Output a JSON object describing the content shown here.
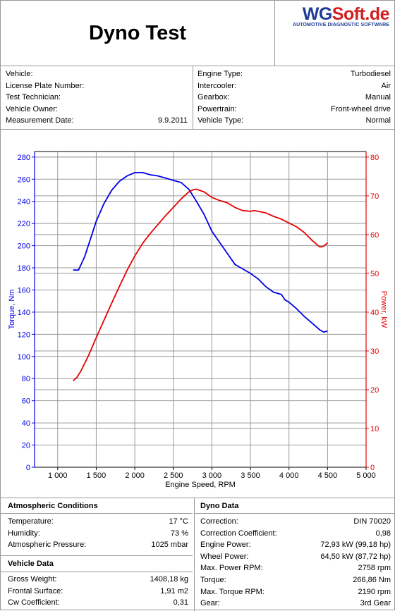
{
  "header": {
    "title": "Dyno Test",
    "logo_wg": "WG",
    "logo_soft": "Soft.de",
    "logo_sub": "AUTOMOTIVE DIAGNOSTIC SOFTWARE"
  },
  "vehicle_info_left": [
    {
      "label": "Vehicle:",
      "value": ""
    },
    {
      "label": "License Plate Number:",
      "value": ""
    },
    {
      "label": "Test Technician:",
      "value": ""
    },
    {
      "label": "Vehicle Owner:",
      "value": ""
    },
    {
      "label": "Measurement Date:",
      "value": "9.9.2011"
    }
  ],
  "vehicle_info_right": [
    {
      "label": "Engine Type:",
      "value": "Turbodiesel"
    },
    {
      "label": "Intercooler:",
      "value": "Air"
    },
    {
      "label": "Gearbox:",
      "value": "Manual"
    },
    {
      "label": "Powertrain:",
      "value": "Front-wheel drive"
    },
    {
      "label": "Vehicle Type:",
      "value": "Normal"
    }
  ],
  "chart_data": {
    "type": "line",
    "xlabel": "Engine Speed, RPM",
    "ylabel_left": "Torque, Nm",
    "ylabel_right": "Power, kW",
    "xlim": [
      700,
      5000
    ],
    "ylim_left": [
      0,
      285
    ],
    "ylim_right": [
      0,
      81.43
    ],
    "x_ticks": [
      1000,
      1500,
      2000,
      2500,
      3000,
      3500,
      4000,
      4500,
      5000
    ],
    "x_tick_labels": [
      "1 000",
      "1 500",
      "2 000",
      "2 500",
      "3 000",
      "3 500",
      "4 000",
      "4 500",
      "5 000"
    ],
    "y_left_ticks": [
      0,
      20,
      40,
      60,
      80,
      100,
      120,
      140,
      160,
      180,
      200,
      220,
      240,
      260,
      280
    ],
    "y_right_ticks": [
      0,
      10,
      20,
      30,
      40,
      50,
      60,
      70,
      80
    ],
    "grid": true,
    "colors": {
      "torque": "#0000e6",
      "power": "#e60000",
      "grid": "#9a9a9a"
    },
    "series": [
      {
        "name": "Torque, Nm",
        "axis": "left",
        "x": [
          1200,
          1270,
          1350,
          1420,
          1500,
          1600,
          1700,
          1800,
          1900,
          2000,
          2100,
          2200,
          2300,
          2400,
          2500,
          2600,
          2700,
          2800,
          2900,
          3000,
          3100,
          3200,
          3300,
          3400,
          3500,
          3600,
          3700,
          3800,
          3900,
          3950,
          4000,
          4100,
          4200,
          4300,
          4400,
          4450,
          4500
        ],
        "values": [
          178,
          178,
          190,
          205,
          222,
          238,
          250,
          258,
          263,
          266,
          266,
          264,
          263,
          261,
          259,
          257,
          251,
          240,
          228,
          213,
          203,
          193,
          183,
          179,
          175,
          170,
          163,
          158,
          156,
          151,
          149,
          143,
          136,
          130,
          124,
          122,
          123
        ]
      },
      {
        "name": "Power, kW",
        "axis": "right",
        "x": [
          1200,
          1250,
          1300,
          1400,
          1500,
          1600,
          1700,
          1800,
          1900,
          2000,
          2100,
          2200,
          2300,
          2400,
          2500,
          2600,
          2700,
          2760,
          2800,
          2900,
          3000,
          3100,
          3200,
          3300,
          3400,
          3500,
          3550,
          3600,
          3700,
          3800,
          3900,
          4000,
          4100,
          4200,
          4300,
          4400,
          4450,
          4500
        ],
        "values": [
          22.3,
          23.2,
          24.8,
          28.8,
          33.4,
          37.9,
          42.3,
          46.6,
          50.8,
          54.5,
          57.7,
          60.3,
          62.6,
          64.9,
          67.0,
          69.2,
          71.0,
          71.6,
          71.7,
          71.0,
          69.6,
          68.8,
          68.2,
          67.0,
          66.2,
          66.0,
          66.2,
          66.0,
          65.6,
          64.7,
          64.0,
          63.0,
          62.0,
          60.5,
          58.5,
          56.8,
          57.0,
          57.9
        ]
      }
    ]
  },
  "atmospheric": {
    "title": "Atmospheric Conditions",
    "rows": [
      {
        "label": "Temperature:",
        "value": "17 °C"
      },
      {
        "label": "Humidity:",
        "value": "73 %"
      },
      {
        "label": "Atmospheric Pressure:",
        "value": "1025 mbar"
      }
    ]
  },
  "vehicle_data": {
    "title": "Vehicle Data",
    "rows": [
      {
        "label": "Gross Weight:",
        "value": "1408,18 kg"
      },
      {
        "label": "Frontal Surface:",
        "value": "1,91 m2"
      },
      {
        "label": "Cw Coefficient:",
        "value": "0,31"
      }
    ]
  },
  "dyno_data": {
    "title": "Dyno Data",
    "rows": [
      {
        "label": "Correction:",
        "value": "DIN 70020"
      },
      {
        "label": "Correction Coefficient:",
        "value": "0,98"
      },
      {
        "label": "Engine Power:",
        "value": "72,93 kW (99,18 hp)"
      },
      {
        "label": "Wheel Power:",
        "value": "64,50 kW (87,72 hp)"
      },
      {
        "label": "Max. Power RPM:",
        "value": "2758 rpm"
      },
      {
        "label": "Torque:",
        "value": "266,86 Nm"
      },
      {
        "label": "Max. Torque RPM:",
        "value": "2190 rpm"
      },
      {
        "label": "Gear:",
        "value": "3rd Gear"
      }
    ]
  }
}
